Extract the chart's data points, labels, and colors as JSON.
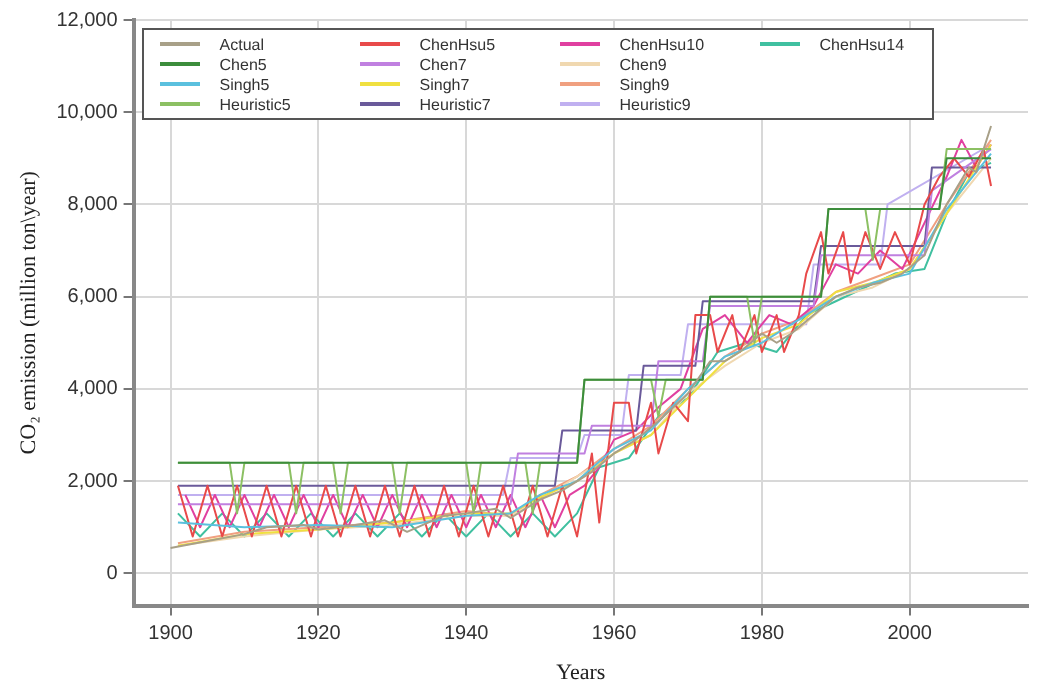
{
  "chart_data": {
    "type": "line",
    "xlabel": "Years",
    "ylabel": "CO₂ emission (million ton\\year)",
    "xlim": [
      1895,
      2016
    ],
    "ylim": [
      -700,
      12000
    ],
    "xticks": [
      1900,
      1920,
      1940,
      1960,
      1980,
      2000
    ],
    "yticks": [
      0,
      {
        "value": 2000,
        "label": "2,000"
      },
      {
        "value": 4000,
        "label": "4,000"
      },
      {
        "value": 6000,
        "label": "6,000"
      },
      {
        "value": 8000,
        "label": "8,000"
      },
      {
        "value": 10000,
        "label": "10,000"
      },
      {
        "value": 12000,
        "label": "12,000"
      }
    ],
    "grid": true,
    "legend": "top left",
    "marker": "none",
    "line_style": "solid",
    "series": [
      {
        "name": "Actual",
        "color": "#a8a088",
        "x": [
          1900,
          1905,
          1910,
          1913,
          1918,
          1920,
          1925,
          1929,
          1932,
          1937,
          1940,
          1944,
          1946,
          1950,
          1953,
          1957,
          1960,
          1963,
          1966,
          1970,
          1973,
          1975,
          1977,
          1980,
          1982,
          1984,
          1987,
          1990,
          1993,
          1996,
          1999,
          2002,
          2005,
          2008,
          2009,
          2011
        ],
        "values": [
          550,
          700,
          850,
          1000,
          1050,
          950,
          1050,
          1150,
          900,
          1250,
          1300,
          1400,
          1200,
          1600,
          1800,
          2200,
          2600,
          2900,
          3300,
          3900,
          4600,
          4600,
          4800,
          5200,
          5000,
          5200,
          5600,
          6000,
          6200,
          6300,
          6500,
          6900,
          8000,
          8800,
          8700,
          9700
        ]
      },
      {
        "name": "Chen5",
        "color": "#3c8d3c",
        "x": [
          1901,
          1955,
          1956,
          1972,
          1973,
          1988,
          1989,
          2004,
          2005,
          2011
        ],
        "values": [
          2400,
          2400,
          4200,
          4200,
          6000,
          6000,
          7900,
          7900,
          9000,
          9000
        ]
      },
      {
        "name": "Singh5",
        "color": "#5bc0de",
        "x": [
          1901,
          1910,
          1920,
          1930,
          1940,
          1946,
          1950,
          1955,
          1960,
          1965,
          1970,
          1975,
          1980,
          1985,
          1990,
          1995,
          2000,
          2005,
          2011
        ],
        "values": [
          1100,
          1000,
          1050,
          1000,
          1250,
          1300,
          1700,
          2000,
          2700,
          3100,
          4000,
          4700,
          5000,
          5500,
          6000,
          6300,
          6500,
          7900,
          9100
        ]
      },
      {
        "name": "Heuristic5",
        "color": "#8cc063",
        "x": [
          1901,
          1908,
          1909,
          1910,
          1916,
          1917,
          1918,
          1922,
          1923,
          1924,
          1930,
          1931,
          1932,
          1940,
          1941,
          1942,
          1948,
          1949,
          1950,
          1955,
          1956,
          1965,
          1966,
          1967,
          1972,
          1973,
          1978,
          1979,
          1980,
          1988,
          1989,
          1994,
          1995,
          1996,
          2004,
          2005,
          2011
        ],
        "values": [
          2400,
          2400,
          1300,
          2400,
          2400,
          1300,
          2400,
          2400,
          1300,
          2400,
          2400,
          1300,
          2400,
          2400,
          1300,
          2400,
          2400,
          1300,
          2400,
          2400,
          4200,
          4200,
          3400,
          4200,
          4200,
          6000,
          6000,
          5000,
          6000,
          6000,
          7900,
          7900,
          6800,
          7900,
          7900,
          9200,
          9200
        ]
      },
      {
        "name": "ChenHsu5",
        "color": "#e84a4a",
        "x": [
          1901,
          1903,
          1905,
          1907,
          1909,
          1911,
          1913,
          1915,
          1917,
          1919,
          1921,
          1923,
          1925,
          1927,
          1929,
          1931,
          1933,
          1935,
          1937,
          1939,
          1941,
          1943,
          1945,
          1947,
          1949,
          1951,
          1953,
          1955,
          1957,
          1958,
          1960,
          1962,
          1963,
          1965,
          1966,
          1968,
          1970,
          1971,
          1973,
          1974,
          1976,
          1977,
          1979,
          1980,
          1982,
          1983,
          1985,
          1986,
          1988,
          1989,
          1991,
          1992,
          1994,
          1996,
          1998,
          2000,
          2002,
          2004,
          2006,
          2008,
          2010,
          2011
        ],
        "values": [
          1900,
          800,
          1900,
          800,
          1900,
          800,
          1900,
          800,
          1900,
          800,
          1900,
          800,
          1900,
          800,
          1900,
          800,
          1900,
          800,
          1900,
          800,
          1900,
          800,
          1900,
          800,
          1900,
          800,
          1900,
          800,
          2600,
          1100,
          3700,
          3700,
          2600,
          3700,
          2600,
          3700,
          3300,
          5600,
          5600,
          4800,
          5600,
          4800,
          5600,
          4800,
          5600,
          4800,
          5600,
          6500,
          7400,
          6500,
          7400,
          6300,
          7400,
          6600,
          7400,
          6700,
          8000,
          8600,
          9000,
          8600,
          9200,
          8400
        ]
      },
      {
        "name": "Chen7",
        "color": "#c080e0",
        "x": [
          1901,
          1946,
          1947,
          1956,
          1957,
          1965,
          1966,
          1972,
          1973,
          1987,
          1988,
          2002,
          2003,
          2011
        ],
        "values": [
          1500,
          1500,
          2600,
          2600,
          3200,
          3200,
          4600,
          4600,
          5800,
          5800,
          6900,
          6900,
          8300,
          9200
        ]
      },
      {
        "name": "Singh7",
        "color": "#f0e040",
        "x": [
          1901,
          1910,
          1920,
          1930,
          1940,
          1946,
          1950,
          1955,
          1960,
          1965,
          1970,
          1975,
          1980,
          1985,
          1990,
          1995,
          2000,
          2005,
          2011
        ],
        "values": [
          600,
          850,
          950,
          1100,
          1300,
          1300,
          1650,
          2000,
          2600,
          3000,
          3800,
          4600,
          5100,
          5400,
          6100,
          6300,
          6600,
          7800,
          9300
        ]
      },
      {
        "name": "Heuristic7",
        "color": "#6a5a9a",
        "x": [
          1901,
          1952,
          1953,
          1963,
          1964,
          1971,
          1972,
          1987,
          1988,
          2002,
          2003,
          2011
        ],
        "values": [
          1900,
          1900,
          3100,
          3100,
          4500,
          4500,
          5900,
          5900,
          7100,
          7100,
          8800,
          8800
        ]
      },
      {
        "name": "ChenHsu10",
        "color": "#e040a0",
        "x": [
          1902,
          1904,
          1906,
          1908,
          1910,
          1912,
          1914,
          1916,
          1918,
          1920,
          1922,
          1924,
          1926,
          1928,
          1930,
          1932,
          1934,
          1936,
          1938,
          1940,
          1942,
          1944,
          1946,
          1948,
          1950,
          1952,
          1954,
          1956,
          1958,
          1960,
          1963,
          1966,
          1969,
          1972,
          1975,
          1978,
          1981,
          1984,
          1987,
          1990,
          1993,
          1996,
          1999,
          2002,
          2005,
          2007,
          2009,
          2011
        ],
        "values": [
          1700,
          1000,
          1700,
          1000,
          1700,
          1000,
          1700,
          1000,
          1700,
          1000,
          1700,
          1000,
          1700,
          1000,
          1700,
          1000,
          1700,
          1000,
          1700,
          1000,
          1700,
          1000,
          1700,
          1000,
          1700,
          1000,
          1700,
          1900,
          2300,
          2900,
          3100,
          3600,
          4000,
          5300,
          5600,
          5000,
          5600,
          5400,
          5800,
          6700,
          6500,
          7000,
          6600,
          7600,
          8600,
          9400,
          8800,
          9300
        ]
      },
      {
        "name": "Chen9",
        "color": "#f0d8b0",
        "x": [
          1901,
          1910,
          1920,
          1930,
          1940,
          1946,
          1950,
          1955,
          1960,
          1965,
          1970,
          1975,
          1980,
          1985,
          1990,
          1995,
          2000,
          2005,
          2011
        ],
        "values": [
          600,
          800,
          950,
          1050,
          1250,
          1250,
          1600,
          2100,
          2600,
          3000,
          3900,
          4500,
          5000,
          5300,
          6000,
          6200,
          6600,
          7800,
          9000
        ]
      },
      {
        "name": "Singh9",
        "color": "#f0a080",
        "x": [
          1901,
          1910,
          1920,
          1930,
          1940,
          1946,
          1950,
          1955,
          1960,
          1965,
          1970,
          1975,
          1980,
          1985,
          1990,
          1995,
          2000,
          2005,
          2011
        ],
        "values": [
          650,
          900,
          1000,
          1100,
          1350,
          1250,
          1700,
          2100,
          2700,
          3200,
          4000,
          4700,
          5200,
          5500,
          6100,
          6400,
          6700,
          8000,
          9400
        ]
      },
      {
        "name": "Heuristic9",
        "color": "#c0b0f0",
        "x": [
          1901,
          1945,
          1946,
          1955,
          1956,
          1961,
          1962,
          1969,
          1970,
          1986,
          1987,
          1996,
          1997,
          2011
        ],
        "values": [
          1700,
          1700,
          2500,
          2500,
          3000,
          3000,
          4300,
          4300,
          5400,
          5400,
          6700,
          6700,
          8000,
          9300
        ]
      },
      {
        "name": "ChenHsu14",
        "color": "#40c0a0",
        "x": [
          1901,
          1904,
          1907,
          1910,
          1913,
          1916,
          1919,
          1922,
          1925,
          1928,
          1931,
          1934,
          1937,
          1940,
          1943,
          1946,
          1949,
          1952,
          1955,
          1958,
          1962,
          1966,
          1970,
          1974,
          1978,
          1982,
          1986,
          1990,
          1994,
          1998,
          2002,
          2005,
          2008,
          2011
        ],
        "values": [
          1300,
          800,
          1300,
          800,
          1300,
          800,
          1300,
          800,
          1300,
          800,
          1300,
          800,
          1300,
          800,
          1300,
          800,
          1300,
          800,
          1300,
          2300,
          2500,
          3400,
          3800,
          4800,
          5000,
          4800,
          5600,
          5900,
          6200,
          6500,
          6600,
          7800,
          8700,
          8900
        ]
      }
    ]
  }
}
